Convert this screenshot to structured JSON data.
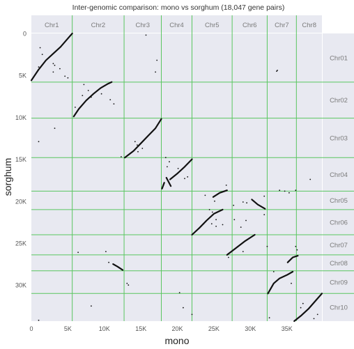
{
  "chart_data": {
    "type": "scatter",
    "title": "Inter-genomic comparison: mono vs sorghum (18,047 gene pairs)",
    "xlabel": "mono",
    "ylabel": "sorghum",
    "xlim": [
      0,
      39800
    ],
    "ylim": [
      0,
      34300
    ],
    "y_inverted": true,
    "grid": true,
    "x_ticks": [
      {
        "value": 0,
        "label": "0"
      },
      {
        "value": 5000,
        "label": "5K"
      },
      {
        "value": 10000,
        "label": "10K"
      },
      {
        "value": 15000,
        "label": "15K"
      },
      {
        "value": 20000,
        "label": "20K"
      },
      {
        "value": 25000,
        "label": "25K"
      },
      {
        "value": 30000,
        "label": "30K"
      },
      {
        "value": 35000,
        "label": "35K"
      }
    ],
    "y_ticks": [
      {
        "value": 0,
        "label": "0"
      },
      {
        "value": 5000,
        "label": "5K"
      },
      {
        "value": 10000,
        "label": "10K"
      },
      {
        "value": 15000,
        "label": "15K"
      },
      {
        "value": 20000,
        "label": "20K"
      },
      {
        "value": 25000,
        "label": "25K"
      },
      {
        "value": 30000,
        "label": "30K"
      }
    ],
    "x_chromosomes": [
      {
        "name": "Chr1",
        "start": 0,
        "end": 5600
      },
      {
        "name": "Chr2",
        "start": 5600,
        "end": 12700
      },
      {
        "name": "Chr3",
        "start": 12700,
        "end": 17800
      },
      {
        "name": "Chr4",
        "start": 17800,
        "end": 22000
      },
      {
        "name": "Chr5",
        "start": 22000,
        "end": 27500
      },
      {
        "name": "Chr6",
        "start": 27500,
        "end": 32300
      },
      {
        "name": "Chr7",
        "start": 32300,
        "end": 36300
      },
      {
        "name": "Chr8",
        "start": 36300,
        "end": 39800
      }
    ],
    "y_chromosomes": [
      {
        "name": "Chr01",
        "start": 0,
        "end": 5800
      },
      {
        "name": "Chr02",
        "start": 5800,
        "end": 10100
      },
      {
        "name": "Chr03",
        "start": 10100,
        "end": 14800
      },
      {
        "name": "Chr04",
        "start": 14800,
        "end": 18800
      },
      {
        "name": "Chr05",
        "start": 18800,
        "end": 21000
      },
      {
        "name": "Chr06",
        "start": 21000,
        "end": 24000
      },
      {
        "name": "Chr07",
        "start": 24000,
        "end": 26400
      },
      {
        "name": "Chr08",
        "start": 26400,
        "end": 28300
      },
      {
        "name": "Chr09",
        "start": 28300,
        "end": 31000
      },
      {
        "name": "Chr10",
        "start": 31000,
        "end": 34300
      }
    ],
    "synteny_blocks": [
      {
        "x": [
          0,
          1000,
          2000,
          3000,
          4000,
          5000,
          5600
        ],
        "y": [
          5600,
          4300,
          3200,
          2400,
          1600,
          600,
          0
        ]
      },
      {
        "x": [
          5800,
          6500,
          7500,
          8500,
          9500,
          10500,
          11000
        ],
        "y": [
          9900,
          9000,
          8000,
          7200,
          6500,
          6000,
          5800
        ]
      },
      {
        "x": [
          12800,
          14000,
          15000,
          16000,
          17000,
          17800
        ],
        "y": [
          14800,
          14000,
          13100,
          12200,
          11300,
          10200
        ]
      },
      {
        "x": [
          19000,
          20000,
          21000,
          22000
        ],
        "y": [
          17400,
          16700,
          15900,
          15000
        ]
      },
      {
        "x": [
          17900,
          18200
        ],
        "y": [
          18500,
          17800
        ]
      },
      {
        "x": [
          18500,
          19100
        ],
        "y": [
          17200,
          18200
        ]
      },
      {
        "x": [
          24900,
          25800,
          26800
        ],
        "y": [
          19500,
          19000,
          18700
        ]
      },
      {
        "x": [
          22000,
          23000,
          24000,
          25000,
          26200
        ],
        "y": [
          24000,
          23200,
          22300,
          21500,
          21000
        ]
      },
      {
        "x": [
          30200,
          31000,
          32000
        ],
        "y": [
          19800,
          20400,
          20900
        ]
      },
      {
        "x": [
          26800,
          28000,
          29200,
          30600
        ],
        "y": [
          26400,
          25600,
          24800,
          24000
        ]
      },
      {
        "x": [
          11200,
          11800,
          12500
        ],
        "y": [
          27500,
          27800,
          28200
        ]
      },
      {
        "x": [
          32400,
          33200,
          34000,
          35000,
          35800
        ],
        "y": [
          31000,
          29800,
          29200,
          28800,
          28400
        ]
      },
      {
        "x": [
          35100,
          35800,
          36500
        ],
        "y": [
          27300,
          26700,
          26500
        ]
      },
      {
        "x": [
          36000,
          37000,
          38000,
          39000,
          39800
        ],
        "y": [
          34300,
          33600,
          32800,
          31800,
          31000
        ]
      }
    ],
    "scatter_points": [
      [
        1200,
        1700
      ],
      [
        1500,
        2500
      ],
      [
        2500,
        2800
      ],
      [
        3000,
        3600
      ],
      [
        3200,
        3800
      ],
      [
        1000,
        4000
      ],
      [
        3900,
        4200
      ],
      [
        3000,
        4600
      ],
      [
        4600,
        5100
      ],
      [
        5000,
        5300
      ],
      [
        7200,
        6100
      ],
      [
        7800,
        6800
      ],
      [
        7000,
        7400
      ],
      [
        8200,
        7600
      ],
      [
        9600,
        7200
      ],
      [
        10800,
        7900
      ],
      [
        11300,
        8400
      ],
      [
        6000,
        8800
      ],
      [
        3200,
        11300
      ],
      [
        1000,
        12900
      ],
      [
        14200,
        12900
      ],
      [
        14500,
        13300
      ],
      [
        15200,
        13700
      ],
      [
        14600,
        14100
      ],
      [
        12300,
        14700
      ],
      [
        15700,
        200
      ],
      [
        17200,
        3200
      ],
      [
        17000,
        4600
      ],
      [
        33700,
        4400
      ],
      [
        18400,
        14800
      ],
      [
        18900,
        15300
      ],
      [
        18600,
        15900
      ],
      [
        20100,
        16100
      ],
      [
        21000,
        17300
      ],
      [
        21400,
        17100
      ],
      [
        20800,
        32700
      ],
      [
        22000,
        33500
      ],
      [
        20300,
        30900
      ],
      [
        23800,
        19300
      ],
      [
        25100,
        20000
      ],
      [
        24400,
        21000
      ],
      [
        24800,
        21300
      ],
      [
        25300,
        22200
      ],
      [
        23600,
        22700
      ],
      [
        24700,
        22700
      ],
      [
        25300,
        23000
      ],
      [
        26200,
        22800
      ],
      [
        26700,
        18100
      ],
      [
        27700,
        20500
      ],
      [
        29000,
        20100
      ],
      [
        29500,
        20200
      ],
      [
        31900,
        19400
      ],
      [
        31900,
        21600
      ],
      [
        28700,
        23100
      ],
      [
        27800,
        22200
      ],
      [
        29400,
        22300
      ],
      [
        32300,
        25400
      ],
      [
        27000,
        26700
      ],
      [
        29000,
        26000
      ],
      [
        33600,
        4500
      ],
      [
        34000,
        18700
      ],
      [
        34700,
        18800
      ],
      [
        35300,
        19000
      ],
      [
        36200,
        18700
      ],
      [
        38200,
        17400
      ],
      [
        32600,
        33900
      ],
      [
        36200,
        25400
      ],
      [
        36400,
        25800
      ],
      [
        35600,
        29800
      ],
      [
        33200,
        28400
      ],
      [
        37200,
        32200
      ],
      [
        38700,
        34000
      ],
      [
        39200,
        33500
      ],
      [
        36900,
        32700
      ],
      [
        8200,
        32500
      ],
      [
        6400,
        26100
      ],
      [
        10200,
        26000
      ],
      [
        10600,
        27300
      ],
      [
        13100,
        29800
      ],
      [
        13300,
        30000
      ],
      [
        1000,
        34200
      ]
    ]
  }
}
